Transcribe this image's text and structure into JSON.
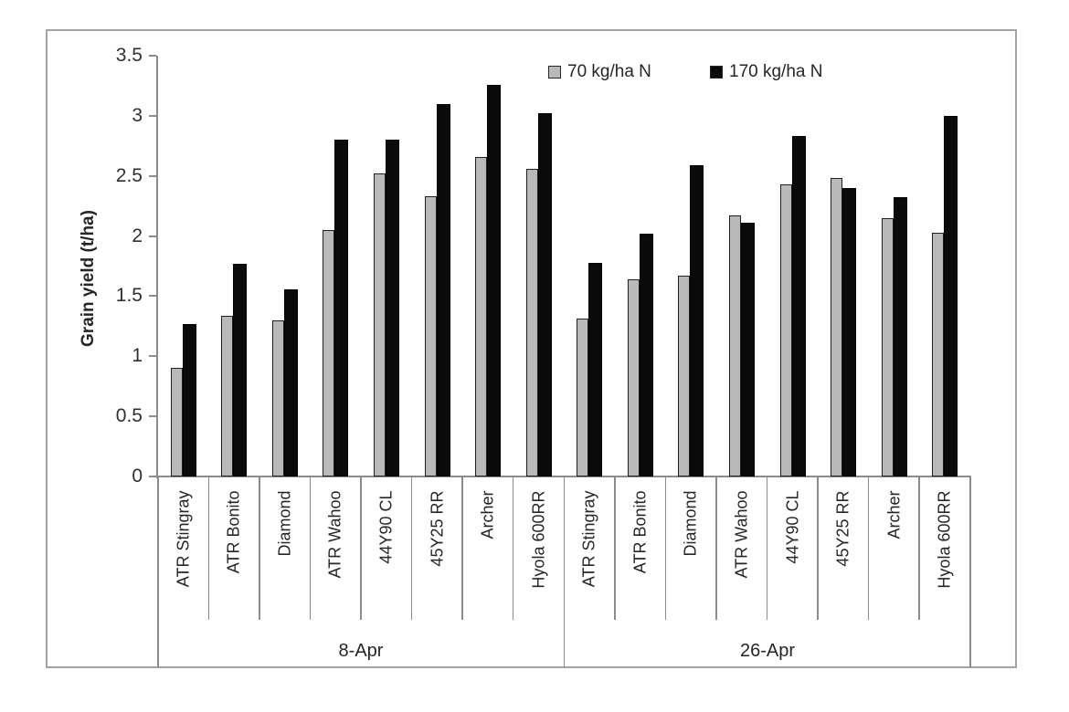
{
  "chart_data": {
    "type": "bar",
    "title": "",
    "ylabel": "Grain yield (t/ha)",
    "xlabel": "",
    "ylim": [
      0,
      3.5
    ],
    "ytick_interval": 0.5,
    "ytick_labels": [
      "3.5",
      "3",
      "2.5",
      "2",
      "1.5",
      "1",
      "0.5",
      "0"
    ],
    "grid": false,
    "legend_position": "top-inside",
    "legend": [
      {
        "label": "70 kg/ha N",
        "color": "#b9b9b9"
      },
      {
        "label": "170 kg/ha N",
        "color": "#0a0a0a"
      }
    ],
    "groups": [
      {
        "label": "8-Apr",
        "categories": [
          "ATR Stingray",
          "ATR Bonito",
          "Diamond",
          "ATR Wahoo",
          "44Y90 CL",
          "45Y25 RR",
          "Archer",
          "Hyola 600RR"
        ],
        "series": [
          {
            "name": "70 kg/ha N",
            "values": [
              0.9,
              1.34,
              1.3,
              2.05,
              2.52,
              2.33,
              2.66,
              2.56
            ]
          },
          {
            "name": "170 kg/ha N",
            "values": [
              1.27,
              1.77,
              1.56,
              2.8,
              2.8,
              3.1,
              3.26,
              3.02
            ]
          }
        ]
      },
      {
        "label": "26-Apr",
        "categories": [
          "ATR Stingray",
          "ATR Bonito",
          "Diamond",
          "ATR Wahoo",
          "44Y90 CL",
          "45Y25 RR",
          "Archer",
          "Hyola 600RR"
        ],
        "series": [
          {
            "name": "70 kg/ha N",
            "values": [
              1.31,
              1.64,
              1.67,
              2.17,
              2.43,
              2.48,
              2.15,
              2.03
            ]
          },
          {
            "name": "170 kg/ha N",
            "values": [
              1.78,
              2.02,
              2.59,
              2.11,
              2.83,
              2.4,
              2.32,
              3.0
            ]
          }
        ]
      }
    ],
    "colors": {
      "axis": "#8c8c8c",
      "figure_border": "#a3a3a3",
      "text": "#262626",
      "bar_70": "#b9b9b9",
      "bar_170": "#0a0a0a"
    }
  }
}
